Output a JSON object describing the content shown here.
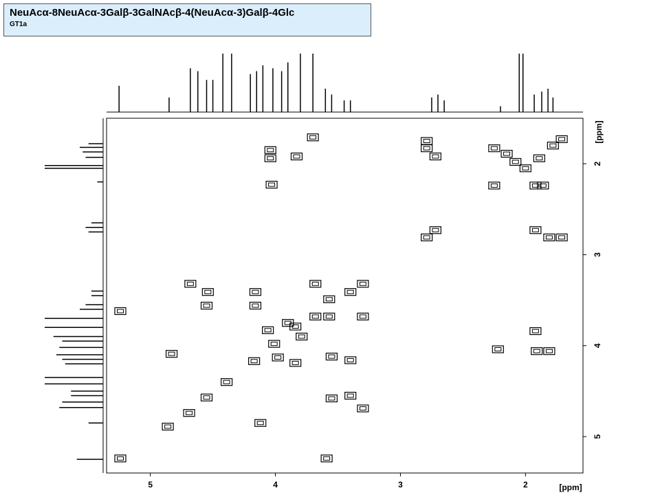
{
  "chart_data": {
    "type": "scatter",
    "title": "NeuAcα-8NeuAcα-3Galβ-3GalNAcβ-4(NeuAcα-3)Galβ-4Glc",
    "subtitle": "GT1a",
    "x_label": "[ppm]",
    "y_label": "[ppm]",
    "xlim": [
      5.35,
      1.54
    ],
    "ylim": [
      1.5,
      5.4
    ],
    "xticks": [
      5,
      4,
      3,
      2
    ],
    "yticks": [
      2,
      3,
      4,
      5
    ],
    "x": [
      2.79,
      2.79,
      2.72,
      2.25,
      2.25,
      2.15,
      2.08,
      2.0,
      1.89,
      1.78,
      1.71,
      1.92,
      1.86,
      3.7,
      4.04,
      4.04,
      3.83,
      4.03,
      2.79,
      2.72,
      1.92,
      1.81,
      1.71,
      4.68,
      4.54,
      4.55,
      4.16,
      4.16,
      3.68,
      3.3,
      3.4,
      3.3,
      5.24,
      5.24,
      3.59,
      4.83,
      4.12,
      3.55,
      3.4,
      3.55,
      3.4,
      3.3,
      3.84,
      2.22,
      1.92,
      1.91,
      1.81,
      4.86,
      4.69,
      4.55,
      4.39,
      4.17,
      4.01,
      3.84,
      3.68,
      3.57,
      3.79,
      3.9,
      4.06,
      3.98,
      3.57
    ],
    "values": [
      1.75,
      1.83,
      1.92,
      1.83,
      2.24,
      1.89,
      1.98,
      2.05,
      1.94,
      1.8,
      1.73,
      2.24,
      2.24,
      1.71,
      1.85,
      1.94,
      1.92,
      2.23,
      2.81,
      2.73,
      2.73,
      2.81,
      2.81,
      3.32,
      3.41,
      3.56,
      3.41,
      3.56,
      3.32,
      3.32,
      3.41,
      3.68,
      3.62,
      5.24,
      5.24,
      4.09,
      4.85,
      4.12,
      4.16,
      4.58,
      4.55,
      4.69,
      4.19,
      4.04,
      3.84,
      4.06,
      4.06,
      4.89,
      4.74,
      4.57,
      4.4,
      4.17,
      3.98,
      3.79,
      3.68,
      3.68,
      3.9,
      3.75,
      3.83,
      4.13,
      3.49
    ],
    "projection": {
      "x": [
        5.25,
        4.85,
        4.68,
        4.62,
        4.55,
        4.5,
        4.42,
        4.35,
        4.2,
        4.15,
        4.1,
        4.02,
        3.95,
        3.9,
        3.8,
        3.7,
        3.6,
        3.55,
        3.45,
        3.4,
        2.75,
        2.7,
        2.65,
        2.2,
        2.05,
        2.02,
        1.93,
        1.87,
        1.82,
        1.78
      ],
      "values": [
        45,
        25,
        75,
        70,
        55,
        55,
        100,
        100,
        65,
        70,
        80,
        75,
        70,
        85,
        100,
        100,
        40,
        30,
        20,
        20,
        25,
        30,
        20,
        10,
        100,
        100,
        30,
        35,
        40,
        25
      ]
    }
  }
}
